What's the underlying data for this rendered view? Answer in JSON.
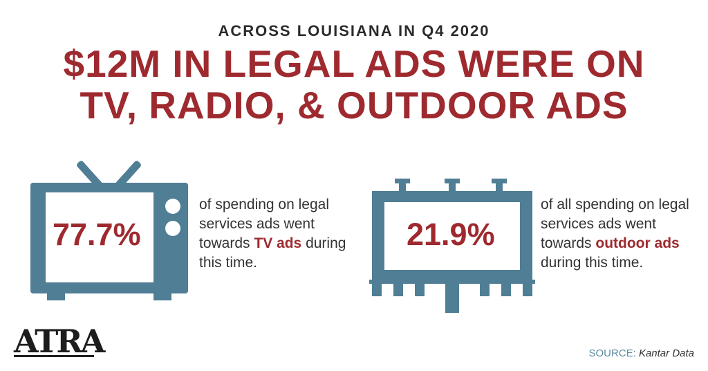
{
  "header": {
    "kicker": "ACROSS LOUISIANA IN Q4 2020",
    "headline_line1": "$12M IN LEGAL ADS WERE ON",
    "headline_line2": "TV, RADIO, & OUTDOOR ADS"
  },
  "tv_stat": {
    "value": "77.7%",
    "desc_part1": "of spending on legal services ads went towards ",
    "highlight": "TV ads",
    "desc_part2": " during this time."
  },
  "outdoor_stat": {
    "value": "21.9%",
    "desc_part1": "of all spending on legal services ads went towards ",
    "highlight": "outdoor ads",
    "desc_part2": " during this time."
  },
  "logo": {
    "text": "ATRA"
  },
  "source": {
    "label": "SOURCE:",
    "value": "Kantar Data"
  },
  "colors": {
    "accent_red": "#9e2a2f",
    "icon_blue": "#4f7e95",
    "text_dark": "#2b2b2b",
    "source_label": "#5b8aa3"
  },
  "icons": [
    "tv-icon",
    "billboard-icon"
  ]
}
